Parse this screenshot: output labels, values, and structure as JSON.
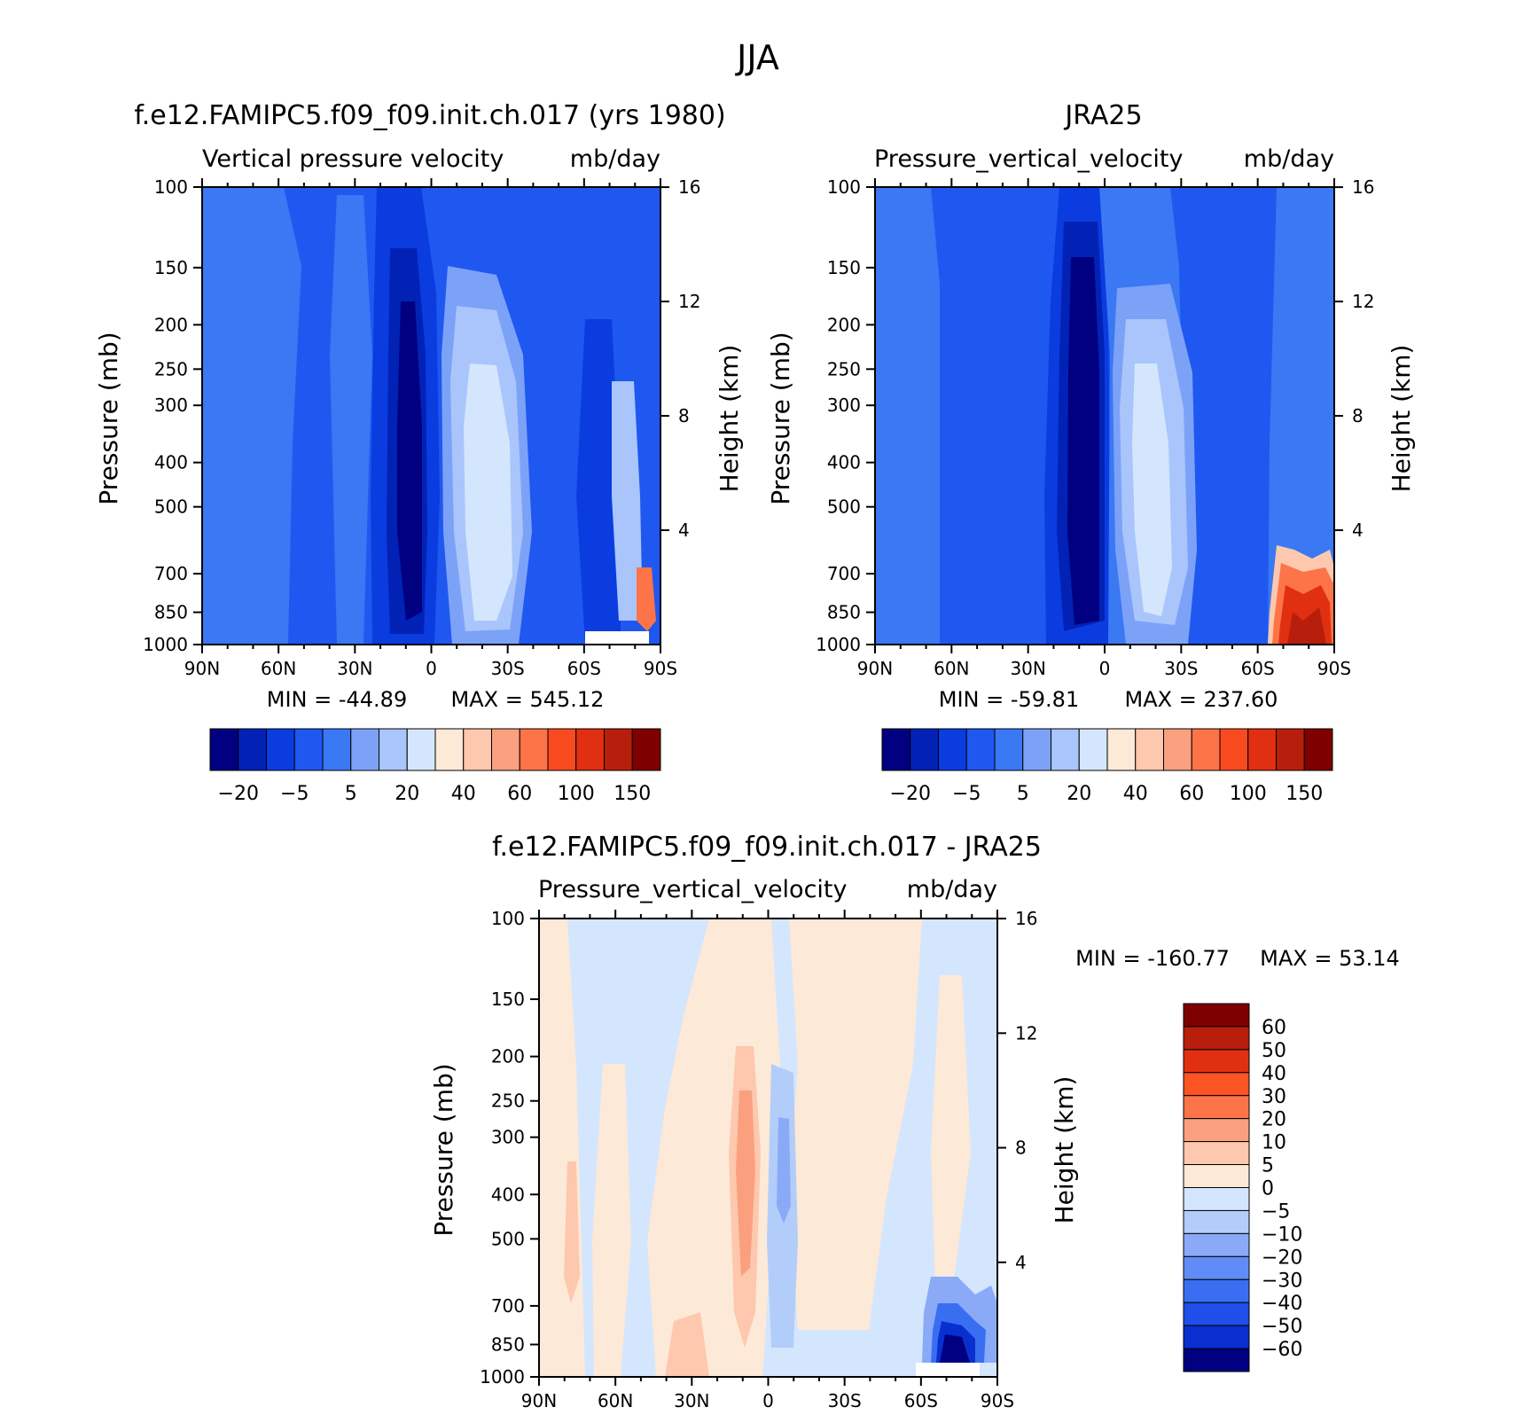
{
  "figure": {
    "title": "JJA"
  },
  "colors": {
    "abs_scale": [
      "#000080",
      "#0222b6",
      "#0a3ce0",
      "#1f58f0",
      "#3a78f4",
      "#7ca2f8",
      "#a9c5fb",
      "#d4e6fd",
      "#fde9d8",
      "#fdc8ad",
      "#fba07f",
      "#fc7448",
      "#fa4a20",
      "#e03011",
      "#b71f0c",
      "#7f0000"
    ],
    "diff_scale": [
      "#7f0000",
      "#b71f0c",
      "#e03011",
      "#fc5423",
      "#fc7448",
      "#fba07f",
      "#fdc8ad",
      "#fde9d8",
      "#d4e6fd",
      "#b3cdfb",
      "#8aaaf8",
      "#5f8cf6",
      "#3a6ef2",
      "#1f4fe8",
      "#0a2fd0",
      "#000080"
    ]
  },
  "chart_data": [
    {
      "id": "model",
      "type": "contour",
      "title": "f.e12.FAMIPC5.f09_f09.init.ch.017 (yrs 1980)",
      "subtitle_left": "Vertical pressure velocity",
      "subtitle_right": "mb/day",
      "xlabel": "",
      "ylabel": "Pressure (mb)",
      "ylabel_right": "Height (km)",
      "x_ticks": [
        "90N",
        "60N",
        "30N",
        "0",
        "30S",
        "60S",
        "90S"
      ],
      "y_ticks": [
        "100",
        "150",
        "200",
        "250",
        "300",
        "400",
        "500",
        "700",
        "850",
        "1000"
      ],
      "y_tick_values": [
        100,
        150,
        200,
        250,
        300,
        400,
        500,
        700,
        850,
        1000
      ],
      "height_ticks": [
        "16",
        "12",
        "8",
        "4"
      ],
      "height_tick_values": [
        16,
        12,
        8,
        4
      ],
      "min_label": "MIN = -44.89",
      "max_label": "MAX = 545.12",
      "colorbar_labels": [
        "-20",
        "-5",
        "5",
        "20",
        "40",
        "60",
        "100",
        "150"
      ],
      "colorbar_levels": [
        -30,
        -20,
        -10,
        -5,
        0,
        5,
        10,
        20,
        30,
        40,
        50,
        60,
        80,
        100,
        120,
        150
      ]
    },
    {
      "id": "obs",
      "type": "contour",
      "title": "JRA25",
      "subtitle_left": "Pressure_vertical_velocity",
      "subtitle_right": "mb/day",
      "xlabel": "",
      "ylabel": "Pressure (mb)",
      "ylabel_right": "Height (km)",
      "x_ticks": [
        "90N",
        "60N",
        "30N",
        "0",
        "30S",
        "60S",
        "90S"
      ],
      "y_ticks": [
        "100",
        "150",
        "200",
        "250",
        "300",
        "400",
        "500",
        "700",
        "850",
        "1000"
      ],
      "y_tick_values": [
        100,
        150,
        200,
        250,
        300,
        400,
        500,
        700,
        850,
        1000
      ],
      "height_ticks": [
        "16",
        "12",
        "8",
        "4"
      ],
      "height_tick_values": [
        16,
        12,
        8,
        4
      ],
      "min_label": "MIN = -59.81",
      "max_label": "MAX = 237.60",
      "colorbar_labels": [
        "-20",
        "-5",
        "5",
        "20",
        "40",
        "60",
        "100",
        "150"
      ],
      "colorbar_levels": [
        -30,
        -20,
        -10,
        -5,
        0,
        5,
        10,
        20,
        30,
        40,
        50,
        60,
        80,
        100,
        120,
        150
      ]
    },
    {
      "id": "diff",
      "type": "contour",
      "title": "f.e12.FAMIPC5.f09_f09.init.ch.017 - JRA25",
      "subtitle_left": "Pressure_vertical_velocity",
      "subtitle_right": "mb/day",
      "xlabel": "",
      "ylabel": "Pressure (mb)",
      "ylabel_right": "Height (km)",
      "x_ticks": [
        "90N",
        "60N",
        "30N",
        "0",
        "30S",
        "60S",
        "90S"
      ],
      "y_ticks": [
        "100",
        "150",
        "200",
        "250",
        "300",
        "400",
        "500",
        "700",
        "850",
        "1000"
      ],
      "y_tick_values": [
        100,
        150,
        200,
        250,
        300,
        400,
        500,
        700,
        850,
        1000
      ],
      "height_ticks": [
        "16",
        "12",
        "8",
        "4"
      ],
      "height_tick_values": [
        16,
        12,
        8,
        4
      ],
      "min_label": "MIN = -160.77",
      "max_label": "MAX =   53.14",
      "colorbar_labels": [
        "60",
        "50",
        "40",
        "30",
        "20",
        "10",
        "5",
        "0",
        "-5",
        "-10",
        "-20",
        "-30",
        "-40",
        "-50",
        "-60"
      ],
      "colorbar_levels": [
        60,
        50,
        40,
        30,
        20,
        10,
        5,
        0,
        -5,
        -10,
        -20,
        -30,
        -40,
        -50,
        -60
      ]
    }
  ]
}
